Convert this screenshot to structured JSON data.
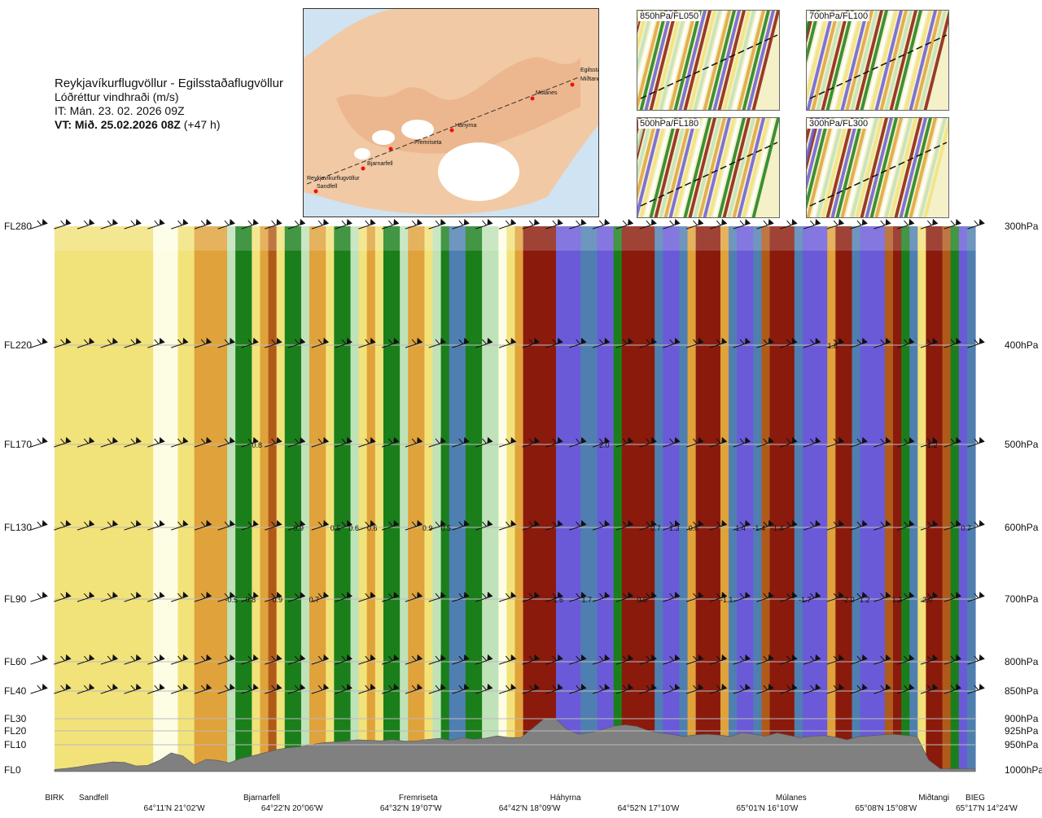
{
  "header": {
    "route": "Reykjavíkurflugvöllur - Egilsstaðaflugvöllur",
    "product": "Lóðréttur vindhraði (m/s)",
    "it": "IT: Mán. 23. 02. 2026 09Z",
    "vt_label": "VT: Mið. 25.02.2026 08Z",
    "vt_lead": "(+47 h)"
  },
  "map": {
    "places": [
      "Reykjavíkurflugvöllur",
      "Sandfell",
      "Bjarnarfell",
      "Fremriseta",
      "Háhyrna",
      "Múlanes",
      "Egilsstaðir",
      "Miðtangi"
    ]
  },
  "insets": [
    "850hPa/FL050",
    "700hPa/FL100",
    "500hPa/FL180",
    "300hPa/FL300"
  ],
  "colors": {
    "strong_down": "#6a5ad8",
    "down2": "#4f7fb0",
    "down1": "#1a7f1a",
    "weak_down": "#bfe2b8",
    "neutral": "#fdfde4",
    "weak_up": "#f2e27a",
    "up1": "#e0a23a",
    "up2": "#b05a1a",
    "strong_up": "#8a1a0c",
    "terrain": "#808080"
  },
  "chart_data": {
    "type": "heatmap",
    "title": "Lóðréttur vindhraði (m/s)",
    "xlabel": "",
    "ylabel": "",
    "flight_levels": [
      "FL280",
      "FL220",
      "FL170",
      "FL130",
      "FL90",
      "FL60",
      "FL40",
      "FL30",
      "FL20",
      "FL10",
      "FL0"
    ],
    "pressure_levels": [
      "300hPa",
      "400hPa",
      "500hPa",
      "600hPa",
      "700hPa",
      "800hPa",
      "850hPa",
      "900hPa",
      "925hPa",
      "950hPa",
      "1000hPa"
    ],
    "locations": [
      {
        "name": "BIRK",
        "pos": 0.0
      },
      {
        "name": "Sandfell",
        "pos": 0.04
      },
      {
        "name": "Bjarnarfell",
        "pos": 0.225
      },
      {
        "name": "Fremriseta",
        "pos": 0.395
      },
      {
        "name": "Háhyrna",
        "pos": 0.555
      },
      {
        "name": "Múlanes",
        "pos": 0.8
      },
      {
        "name": "Miðtangi",
        "pos": 0.955
      },
      {
        "name": "BIEG",
        "pos": 1.0
      }
    ],
    "coordinates": [
      {
        "label": "64°11'N 21°02'W",
        "pos": 0.13
      },
      {
        "label": "64°22'N 20°06'W",
        "pos": 0.258
      },
      {
        "label": "64°32'N 19°07'W",
        "pos": 0.387
      },
      {
        "label": "64°42'N 18°09'W",
        "pos": 0.516
      },
      {
        "label": "64°52'N 17°10'W",
        "pos": 0.645
      },
      {
        "label": "65°01'N 16°10'W",
        "pos": 0.774
      },
      {
        "label": "65°08'N 15°08'W",
        "pos": 0.903
      },
      {
        "label": "65°17'N 14°24'W",
        "pos": 1.0
      }
    ],
    "terrain_height_fl": [
      0.2,
      0.6,
      1.2,
      2.0,
      2.6,
      3.2,
      3.0,
      1.6,
      1.8,
      3.8,
      6.8,
      5.6,
      2.0,
      4.2,
      3.8,
      2.8,
      4.6,
      5.6,
      6.8,
      8.0,
      8.8,
      9.2,
      10.0,
      11.4,
      12.0,
      12.6,
      13.6,
      13.2,
      12.8,
      13.8,
      12.6,
      12.6,
      13.8,
      14.6,
      13.2,
      15.0,
      14.0,
      14.8,
      16.4,
      15.2,
      15.2,
      22.0,
      30.0,
      30.0,
      21.0,
      17.6,
      19.0,
      21.0,
      24.0,
      25.0,
      23.6,
      20.0,
      18.6,
      17.4,
      16.0,
      17.2,
      17.6,
      17.0,
      16.0,
      18.8,
      17.6,
      16.2,
      18.6,
      16.8,
      15.2,
      16.2,
      16.6,
      15.6,
      13.6,
      16.0,
      16.4,
      17.2,
      17.6,
      16.8,
      16.2,
      4.0,
      0.5,
      0.5,
      0.5,
      0.5
    ],
    "vertical_velocity_columns": [
      0.2,
      0.3,
      0.2,
      0.4,
      0.4,
      0.3,
      0.2,
      0.3,
      0.4,
      0.4,
      0.3,
      0.2,
      0.1,
      -0.1,
      0.1,
      0.3,
      0.5,
      0.6,
      0.8,
      0.9,
      0.6,
      -0.2,
      -0.8,
      -1.0,
      0.3,
      0.9,
      1.1,
      0.5,
      -0.6,
      -0.9,
      -0.3,
      0.6,
      0.9,
      0.2,
      -0.7,
      -1.0,
      -0.3,
      0.5,
      0.8,
      0.2,
      -0.6,
      -0.9,
      -0.2,
      0.6,
      0.9,
      0.3,
      -0.3,
      -0.7,
      -1.2,
      -1.3,
      -1.0,
      -0.7,
      -0.4,
      -0.2,
      -0.1,
      0.3,
      0.9,
      1.7,
      2.0,
      2.0,
      1.4,
      -1.6,
      -1.8,
      -1.7,
      -1.2,
      -1.4,
      -1.8,
      -1.5,
      -0.9,
      1.4,
      1.9,
      2.0,
      1.6,
      -1.4,
      -1.6,
      -1.7,
      -1.4,
      0.8,
      1.5,
      1.9,
      1.8,
      0.8,
      -1.2,
      -1.5,
      -1.6,
      -1.3,
      1.3,
      1.8,
      2.0,
      1.7,
      -1.3,
      -1.7,
      -1.8,
      -1.5,
      0.9,
      1.4,
      1.5,
      -1.4,
      -1.7,
      -1.8,
      -1.6,
      1.2,
      1.6,
      -0.9,
      -1.2,
      0.5,
      1.7,
      1.8,
      1.3,
      -0.9,
      -1.5,
      -1.2
    ],
    "annotations": [
      {
        "label": "0.8",
        "fl": 170,
        "pos": 0.22
      },
      {
        "label": "0.9",
        "fl": 130,
        "pos": 0.265
      },
      {
        "label": "0.6",
        "fl": 130,
        "pos": 0.305
      },
      {
        "label": "0.6",
        "fl": 130,
        "pos": 0.325
      },
      {
        "label": "0.6",
        "fl": 130,
        "pos": 0.345
      },
      {
        "label": "0.9",
        "fl": 130,
        "pos": 0.405
      },
      {
        "label": "0.5",
        "fl": 130,
        "pos": 0.425
      },
      {
        "label": "-0.5",
        "fl": 90,
        "pos": 0.192
      },
      {
        "label": "0.8",
        "fl": 90,
        "pos": 0.213
      },
      {
        "label": "0.9",
        "fl": 90,
        "pos": 0.242
      },
      {
        "label": "0.7",
        "fl": 90,
        "pos": 0.282
      },
      {
        "label": "1.6",
        "fl": 90,
        "pos": 0.547
      },
      {
        "label": "1.7",
        "fl": 90,
        "pos": 0.578
      },
      {
        "label": "0.6",
        "fl": 90,
        "pos": 0.638
      },
      {
        "label": "2.0",
        "fl": 170,
        "pos": 0.597
      },
      {
        "label": "0.7",
        "fl": 130,
        "pos": 0.653
      },
      {
        "label": "1.3",
        "fl": 130,
        "pos": 0.673
      },
      {
        "label": "0.8",
        "fl": 130,
        "pos": 0.694
      },
      {
        "label": "-1.1",
        "fl": 90,
        "pos": 0.73
      },
      {
        "label": "1.4",
        "fl": 130,
        "pos": 0.745
      },
      {
        "label": "-1.4",
        "fl": 130,
        "pos": 0.765
      },
      {
        "label": "-1.4",
        "fl": 130,
        "pos": 0.785
      },
      {
        "label": "1.8",
        "fl": 220,
        "pos": 0.845
      },
      {
        "label": "-1.7",
        "fl": 90,
        "pos": 0.815
      },
      {
        "label": "-2.0",
        "fl": 90,
        "pos": 0.862
      },
      {
        "label": "1.2",
        "fl": 90,
        "pos": 0.88
      },
      {
        "label": "1.3",
        "fl": 90,
        "pos": 0.915
      },
      {
        "label": "2.0",
        "fl": 90,
        "pos": 0.948
      },
      {
        "label": "-1.2",
        "fl": 170,
        "pos": 0.952
      },
      {
        "label": "0.7",
        "fl": 130,
        "pos": 0.99
      }
    ],
    "legend": "none"
  }
}
